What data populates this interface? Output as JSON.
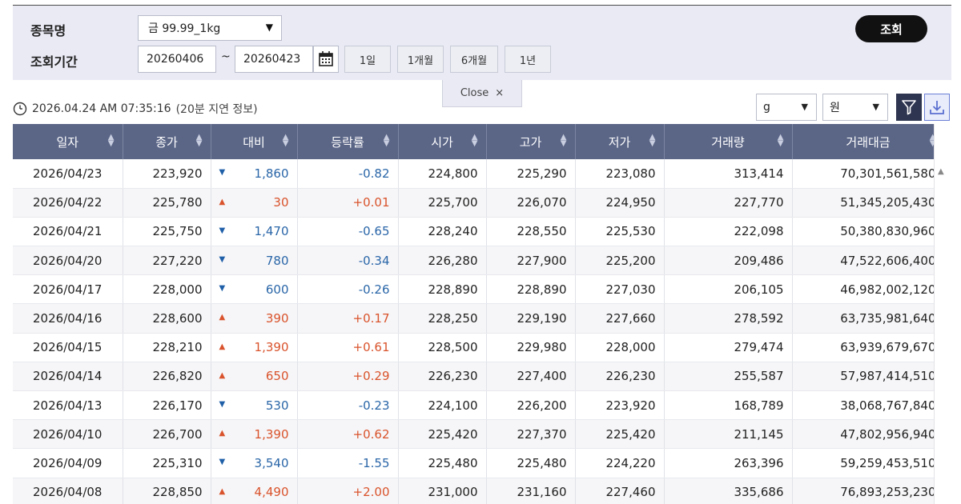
{
  "search": {
    "item_label": "종목명",
    "period_label": "조회기간",
    "item_value": "금 99.99_1kg",
    "start_date": "20260406",
    "range_sep": "~",
    "end_date": "20260423",
    "periods": [
      "1일",
      "1개월",
      "6개월",
      "1년"
    ],
    "search_button": "조회",
    "close_label": "Close",
    "close_icon": "×"
  },
  "info": {
    "timestamp": "2026.04.24 AM 07:35:16",
    "delay_note": "(20분 지연 정보)",
    "unit_value": "g",
    "currency_value": "원"
  },
  "icons": {
    "clock": "clock-icon",
    "calendar": "calendar-icon",
    "filter": "filter-icon",
    "download": "download-icon"
  },
  "colors": {
    "header_bg": "#5b6687",
    "up": "#d9532c",
    "down": "#2a66a8",
    "panel_bg": "#e9eaf4",
    "download_accent": "#6a7fd6"
  },
  "table": {
    "headers": [
      "일자",
      "종가",
      "대비",
      "등락률",
      "시가",
      "고가",
      "저가",
      "거래량",
      "거래대금"
    ],
    "rows": [
      {
        "date": "2026/04/23",
        "close": "223,920",
        "dir": "down",
        "change": "1,860",
        "rate": "-0.82",
        "open": "224,800",
        "high": "225,290",
        "low": "223,080",
        "volume": "313,414",
        "amount": "70,301,561,580"
      },
      {
        "date": "2026/04/22",
        "close": "225,780",
        "dir": "up",
        "change": "30",
        "rate": "+0.01",
        "open": "225,700",
        "high": "226,070",
        "low": "224,950",
        "volume": "227,770",
        "amount": "51,345,205,430"
      },
      {
        "date": "2026/04/21",
        "close": "225,750",
        "dir": "down",
        "change": "1,470",
        "rate": "-0.65",
        "open": "228,240",
        "high": "228,550",
        "low": "225,530",
        "volume": "222,098",
        "amount": "50,380,830,960"
      },
      {
        "date": "2026/04/20",
        "close": "227,220",
        "dir": "down",
        "change": "780",
        "rate": "-0.34",
        "open": "226,280",
        "high": "227,900",
        "low": "225,200",
        "volume": "209,486",
        "amount": "47,522,606,400"
      },
      {
        "date": "2026/04/17",
        "close": "228,000",
        "dir": "down",
        "change": "600",
        "rate": "-0.26",
        "open": "228,890",
        "high": "228,890",
        "low": "227,030",
        "volume": "206,105",
        "amount": "46,982,002,120"
      },
      {
        "date": "2026/04/16",
        "close": "228,600",
        "dir": "up",
        "change": "390",
        "rate": "+0.17",
        "open": "228,250",
        "high": "229,190",
        "low": "227,660",
        "volume": "278,592",
        "amount": "63,735,981,640"
      },
      {
        "date": "2026/04/15",
        "close": "228,210",
        "dir": "up",
        "change": "1,390",
        "rate": "+0.61",
        "open": "228,500",
        "high": "229,980",
        "low": "228,000",
        "volume": "279,474",
        "amount": "63,939,679,670"
      },
      {
        "date": "2026/04/14",
        "close": "226,820",
        "dir": "up",
        "change": "650",
        "rate": "+0.29",
        "open": "226,230",
        "high": "227,400",
        "low": "226,230",
        "volume": "255,587",
        "amount": "57,987,414,510"
      },
      {
        "date": "2026/04/13",
        "close": "226,170",
        "dir": "down",
        "change": "530",
        "rate": "-0.23",
        "open": "224,100",
        "high": "226,200",
        "low": "223,920",
        "volume": "168,789",
        "amount": "38,068,767,840"
      },
      {
        "date": "2026/04/10",
        "close": "226,700",
        "dir": "up",
        "change": "1,390",
        "rate": "+0.62",
        "open": "225,420",
        "high": "227,370",
        "low": "225,420",
        "volume": "211,145",
        "amount": "47,802,956,940"
      },
      {
        "date": "2026/04/09",
        "close": "225,310",
        "dir": "down",
        "change": "3,540",
        "rate": "-1.55",
        "open": "225,480",
        "high": "225,480",
        "low": "224,220",
        "volume": "263,396",
        "amount": "59,259,453,510"
      },
      {
        "date": "2026/04/08",
        "close": "228,850",
        "dir": "up",
        "change": "4,490",
        "rate": "+2.00",
        "open": "231,000",
        "high": "231,160",
        "low": "227,460",
        "volume": "335,686",
        "amount": "76,893,253,230"
      }
    ]
  }
}
